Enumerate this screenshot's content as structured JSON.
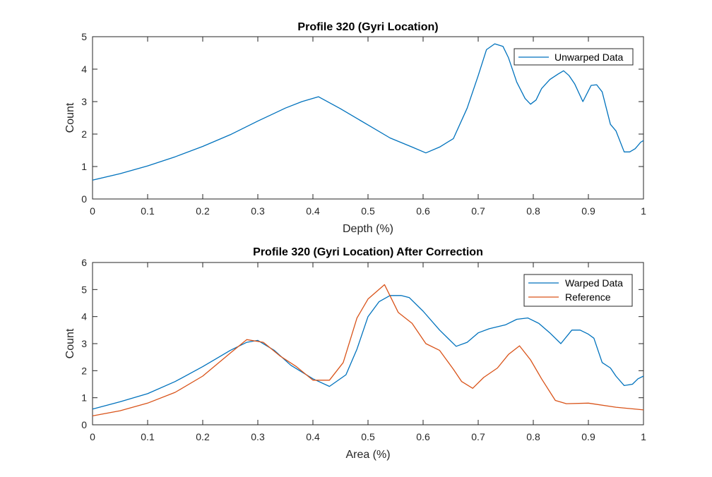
{
  "chart_data": [
    {
      "type": "line",
      "title": "Profile 320 (Gyri Location)",
      "xlabel": "Depth (%)",
      "ylabel": "Count",
      "xlim": [
        0,
        1
      ],
      "ylim": [
        0,
        5
      ],
      "xticks": [
        "0",
        "0.1",
        "0.2",
        "0.3",
        "0.4",
        "0.5",
        "0.6",
        "0.7",
        "0.8",
        "0.9",
        "1"
      ],
      "yticks": [
        "0",
        "1",
        "2",
        "3",
        "4",
        "5"
      ],
      "grid": false,
      "legend_position": "top-right",
      "series": [
        {
          "name": "Unwarped Data",
          "color": "#0072BD",
          "x": [
            0,
            0.05,
            0.1,
            0.15,
            0.2,
            0.25,
            0.3,
            0.35,
            0.38,
            0.41,
            0.45,
            0.5,
            0.54,
            0.58,
            0.605,
            0.63,
            0.655,
            0.68,
            0.7,
            0.715,
            0.73,
            0.745,
            0.755,
            0.77,
            0.785,
            0.795,
            0.805,
            0.815,
            0.83,
            0.845,
            0.855,
            0.865,
            0.875,
            0.89,
            0.905,
            0.915,
            0.925,
            0.94,
            0.95,
            0.965,
            0.975,
            0.985,
            0.995,
            1
          ],
          "y": [
            0.58,
            0.78,
            1.02,
            1.3,
            1.62,
            1.98,
            2.4,
            2.8,
            3.0,
            3.15,
            2.78,
            2.28,
            1.88,
            1.6,
            1.42,
            1.6,
            1.86,
            2.8,
            3.8,
            4.6,
            4.78,
            4.7,
            4.35,
            3.6,
            3.1,
            2.92,
            3.05,
            3.4,
            3.68,
            3.85,
            3.95,
            3.8,
            3.55,
            3.0,
            3.5,
            3.52,
            3.3,
            2.3,
            2.1,
            1.45,
            1.45,
            1.55,
            1.75,
            1.8
          ]
        }
      ]
    },
    {
      "type": "line",
      "title": "Profile 320 (Gyri Location) After Correction",
      "xlabel": "Area (%)",
      "ylabel": "Count",
      "xlim": [
        0,
        1
      ],
      "ylim": [
        0,
        6
      ],
      "xticks": [
        "0",
        "0.1",
        "0.2",
        "0.3",
        "0.4",
        "0.5",
        "0.6",
        "0.7",
        "0.8",
        "0.9",
        "1"
      ],
      "yticks": [
        "0",
        "1",
        "2",
        "3",
        "4",
        "5",
        "6"
      ],
      "grid": false,
      "legend_position": "top-right",
      "series": [
        {
          "name": "Warped Data",
          "color": "#0072BD",
          "x": [
            0,
            0.05,
            0.1,
            0.15,
            0.2,
            0.25,
            0.28,
            0.3,
            0.33,
            0.36,
            0.4,
            0.43,
            0.46,
            0.48,
            0.5,
            0.52,
            0.54,
            0.56,
            0.575,
            0.6,
            0.63,
            0.66,
            0.68,
            0.7,
            0.72,
            0.75,
            0.77,
            0.79,
            0.81,
            0.83,
            0.85,
            0.87,
            0.885,
            0.9,
            0.91,
            0.925,
            0.94,
            0.95,
            0.965,
            0.98,
            0.99,
            1
          ],
          "y": [
            0.58,
            0.85,
            1.15,
            1.6,
            2.15,
            2.75,
            3.05,
            3.12,
            2.75,
            2.2,
            1.7,
            1.42,
            1.85,
            2.8,
            4.0,
            4.55,
            4.78,
            4.78,
            4.7,
            4.2,
            3.5,
            2.9,
            3.05,
            3.4,
            3.55,
            3.7,
            3.9,
            3.95,
            3.75,
            3.4,
            3.0,
            3.5,
            3.5,
            3.35,
            3.2,
            2.3,
            2.1,
            1.8,
            1.45,
            1.5,
            1.7,
            1.8
          ]
        },
        {
          "name": "Reference",
          "color": "#D95319",
          "x": [
            0,
            0.05,
            0.1,
            0.15,
            0.2,
            0.25,
            0.28,
            0.31,
            0.34,
            0.37,
            0.4,
            0.43,
            0.455,
            0.48,
            0.5,
            0.53,
            0.555,
            0.58,
            0.605,
            0.63,
            0.655,
            0.67,
            0.69,
            0.71,
            0.735,
            0.755,
            0.775,
            0.795,
            0.815,
            0.84,
            0.86,
            0.9,
            0.95,
            1
          ],
          "y": [
            0.33,
            0.52,
            0.8,
            1.2,
            1.8,
            2.65,
            3.15,
            3.05,
            2.55,
            2.15,
            1.65,
            1.65,
            2.3,
            3.95,
            4.65,
            5.18,
            4.15,
            3.75,
            3.0,
            2.75,
            2.05,
            1.6,
            1.35,
            1.75,
            2.1,
            2.6,
            2.92,
            2.4,
            1.7,
            0.9,
            0.78,
            0.8,
            0.65,
            0.55
          ]
        }
      ]
    }
  ]
}
